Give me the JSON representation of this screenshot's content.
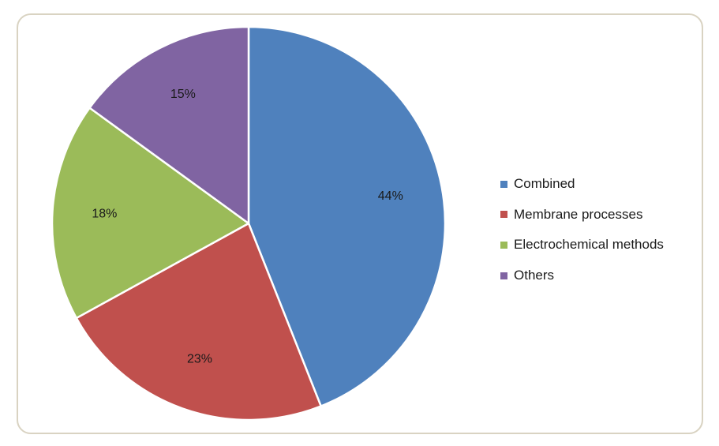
{
  "chart_data": {
    "type": "pie",
    "title": "",
    "categories": [
      "Combined",
      "Membrane processes",
      "Electrochemical methods",
      "Others"
    ],
    "values": [
      44,
      23,
      18,
      15
    ],
    "labels": [
      "44%",
      "23%",
      "18%",
      "15%"
    ],
    "colors": [
      "#4f81bd",
      "#c0504d",
      "#9bbb59",
      "#8064a2"
    ],
    "legend_position": "right",
    "start_angle": "12 o'clock",
    "direction": "clockwise"
  }
}
